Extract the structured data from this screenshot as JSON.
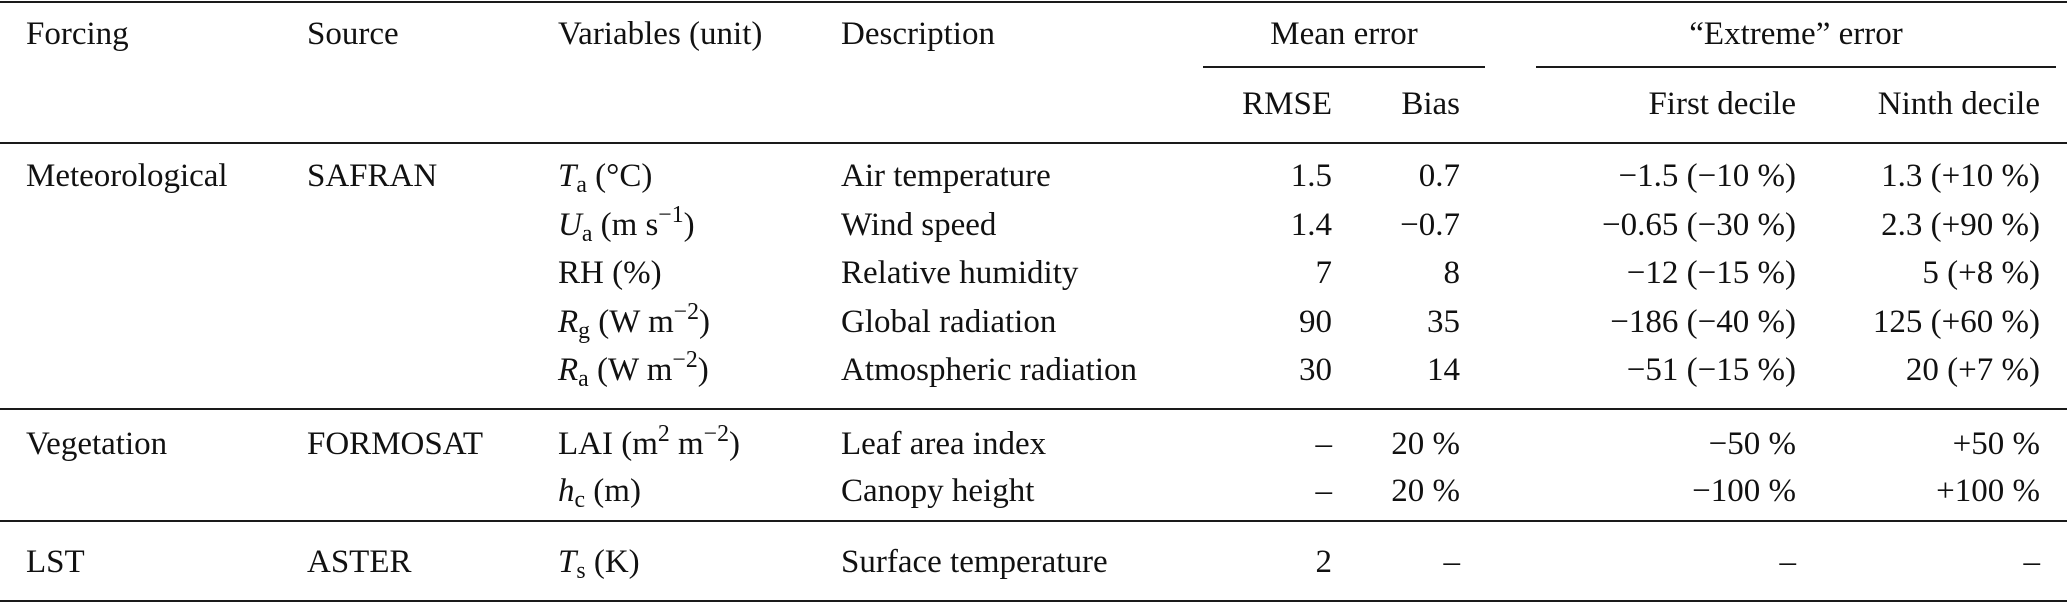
{
  "header": {
    "forcing": "Forcing",
    "source": "Source",
    "variables": "Variables (unit)",
    "description": "Description",
    "mean_error": "Mean error",
    "extreme_error": "“Extreme” error",
    "rmse": "RMSE",
    "bias": "Bias",
    "first_decile": "First decile",
    "ninth_decile": "Ninth decile"
  },
  "groups": [
    {
      "forcing": "Meteorological",
      "source": "SAFRAN",
      "rows": [
        {
          "sym": "T",
          "sub": "a",
          "unit_pre": " (°C)",
          "sup": "",
          "unit_post": "",
          "description": "Air temperature",
          "rmse": "1.5",
          "bias": "0.7",
          "first": "−1.5 (−10 %)",
          "ninth": "1.3 (+10 %)"
        },
        {
          "sym": "U",
          "sub": "a",
          "unit_pre": " (m s",
          "sup": "−1",
          "unit_post": ")",
          "description": "Wind speed",
          "rmse": "1.4",
          "bias": "−0.7",
          "first": "−0.65 (−30 %)",
          "ninth": "2.3 (+90 %)"
        },
        {
          "sym": "RH",
          "sub": "",
          "unit_pre": " (%)",
          "sup": "",
          "unit_post": "",
          "description": "Relative humidity",
          "rmse": "7",
          "bias": "8",
          "first": "−12 (−15 %)",
          "ninth": "5 (+8 %)"
        },
        {
          "sym": "R",
          "sub": "g",
          "unit_pre": " (W m",
          "sup": "−2",
          "unit_post": ")",
          "description": "Global radiation",
          "rmse": "90",
          "bias": "35",
          "first": "−186 (−40 %)",
          "ninth": "125 (+60 %)"
        },
        {
          "sym": "R",
          "sub": "a",
          "unit_pre": " (W m",
          "sup": "−2",
          "unit_post": ")",
          "description": "Atmospheric radiation",
          "rmse": "30",
          "bias": "14",
          "first": "−51 (−15 %)",
          "ninth": "20 (+7 %)"
        }
      ]
    },
    {
      "forcing": "Vegetation",
      "source": "FORMOSAT",
      "rows": [
        {
          "sym": "LAI",
          "sub": "",
          "unit_pre": " (m",
          "sup": "2",
          "unit_post": " m",
          "sup2": "−2",
          "unit_post2": ")",
          "description": "Leaf area index",
          "rmse": "–",
          "bias": "20 %",
          "first": "−50 %",
          "ninth": "+50 %"
        },
        {
          "sym": "h",
          "sub": "c",
          "unit_pre": " (m)",
          "sup": "",
          "unit_post": "",
          "description": "Canopy height",
          "rmse": "–",
          "bias": "20 %",
          "first": "−100 %",
          "ninth": "+100 %"
        }
      ]
    },
    {
      "forcing": "LST",
      "source": "ASTER",
      "rows": [
        {
          "sym": "T",
          "sub": "s",
          "unit_pre": " (K)",
          "sup": "",
          "unit_post": "",
          "description": "Surface temperature",
          "rmse": "2",
          "bias": "–",
          "first": "–",
          "ninth": "–"
        }
      ]
    }
  ]
}
